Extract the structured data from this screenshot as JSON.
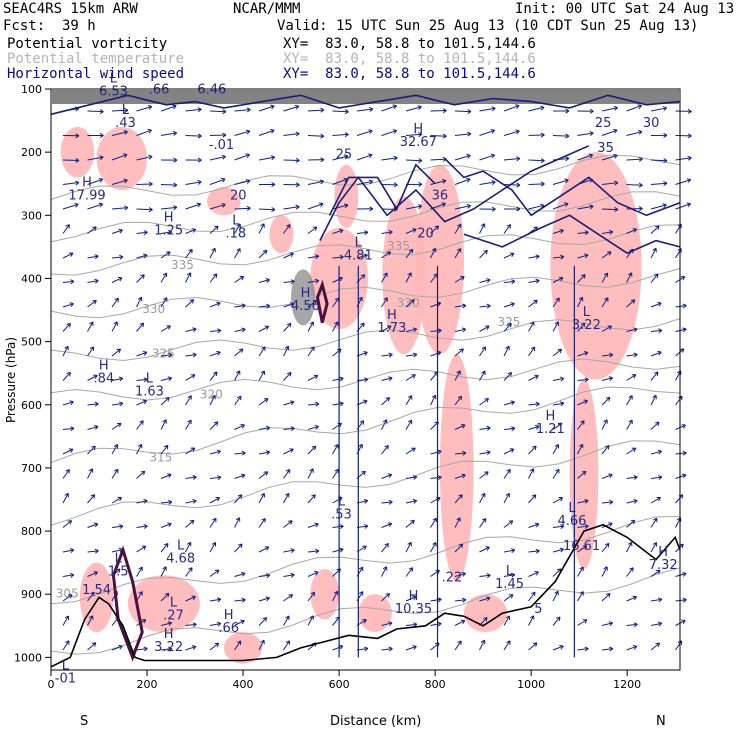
{
  "header": {
    "model": "SEAC4RS 15km ARW",
    "center": "NCAR/MMM",
    "init": "Init: 00 UTC Sat 24 Aug 13",
    "fcst_label": "Fcst:",
    "fcst_value": "39 h",
    "valid": "Valid: 15 UTC Sun 25 Aug 13 (10 CDT Sun 25 Aug 13)"
  },
  "fields": [
    {
      "name": "Potential vorticity",
      "xy": "XY=  83.0, 58.8 to 101.5,144.6",
      "color": "#000000"
    },
    {
      "name": "Potential temperature",
      "xy": "XY=  83.0, 58.8 to 101.5,144.6",
      "color": "#b4b4b4"
    },
    {
      "name": "Horizontal wind speed",
      "xy": "XY=  83.0, 58.8 to 101.5,144.6",
      "color": "#0a0a8c"
    }
  ],
  "colors": {
    "pv_contour": "#4a1040",
    "theta": "#a8a8a8",
    "wind": "#10208a",
    "shade_pink": "#ffb6b6",
    "terrain": "#000000"
  },
  "chart_data": {
    "type": "cross-section",
    "xlabel": "Distance (km)",
    "ylabel": "Pressure (hPa)",
    "xlim": [
      0,
      1310
    ],
    "ylim": [
      1020,
      100
    ],
    "xticks": [
      0,
      200,
      400,
      600,
      800,
      1000,
      1200
    ],
    "yticks": [
      100,
      200,
      300,
      400,
      500,
      600,
      700,
      800,
      900,
      1000
    ],
    "x_end_labels": {
      "left": "S",
      "right": "N"
    },
    "theta_contours": [
      {
        "label": "305",
        "x": 10,
        "p": 905
      },
      {
        "label": "315",
        "x": 205,
        "p": 690
      },
      {
        "label": "320",
        "x": 310,
        "p": 590
      },
      {
        "label": "325",
        "x": 210,
        "p": 525
      },
      {
        "label": "330",
        "x": 190,
        "p": 455
      },
      {
        "label": "335",
        "x": 250,
        "p": 385
      },
      {
        "label": "325",
        "x": 930,
        "p": 475
      },
      {
        "label": "330",
        "x": 720,
        "p": 445
      },
      {
        "label": "335",
        "x": 700,
        "p": 355
      }
    ],
    "extrema_labels": [
      {
        "mark": "L",
        "value": "6.53",
        "x": 130,
        "p": 110
      },
      {
        "mark": "",
        "value": ".66",
        "x": 225,
        "p": 107
      },
      {
        "mark": "",
        "value": "6.46",
        "x": 335,
        "p": 107
      },
      {
        "mark": "L",
        "value": ".43",
        "x": 155,
        "p": 160
      },
      {
        "mark": "",
        "value": "-.01",
        "x": 355,
        "p": 195
      },
      {
        "mark": "H",
        "value": "17.99",
        "x": 75,
        "p": 275
      },
      {
        "mark": "H",
        "value": "1.25",
        "x": 245,
        "p": 330
      },
      {
        "mark": "L",
        "value": ".18",
        "x": 385,
        "p": 335
      },
      {
        "mark": "",
        "value": "20",
        "x": 390,
        "p": 275
      },
      {
        "mark": "",
        "value": "25",
        "x": 610,
        "p": 210
      },
      {
        "mark": "H",
        "value": "32.67",
        "x": 765,
        "p": 190
      },
      {
        "mark": "",
        "value": "36",
        "x": 810,
        "p": 275
      },
      {
        "mark": "",
        "value": "20",
        "x": 780,
        "p": 335
      },
      {
        "mark": "",
        "value": "35",
        "x": 1155,
        "p": 200
      },
      {
        "mark": "",
        "value": "25",
        "x": 1150,
        "p": 160
      },
      {
        "mark": "",
        "value": "30",
        "x": 1250,
        "p": 160
      },
      {
        "mark": "L",
        "value": "4.81",
        "x": 640,
        "p": 370
      },
      {
        "mark": "H",
        "value": "4.56",
        "x": 530,
        "p": 450
      },
      {
        "mark": "H",
        "value": "1.73",
        "x": 710,
        "p": 485
      },
      {
        "mark": "L",
        "value": "3.22",
        "x": 1115,
        "p": 480
      },
      {
        "mark": "H",
        "value": ".84",
        "x": 110,
        "p": 565
      },
      {
        "mark": "L",
        "value": "1.63",
        "x": 205,
        "p": 585
      },
      {
        "mark": "H",
        "value": "1.21",
        "x": 1040,
        "p": 645
      },
      {
        "mark": "L",
        "value": ".53",
        "x": 605,
        "p": 780
      },
      {
        "mark": "L",
        "value": "4.66",
        "x": 1085,
        "p": 790
      },
      {
        "mark": "",
        "value": "16.61",
        "x": 1105,
        "p": 830
      },
      {
        "mark": "L",
        "value": "4.68",
        "x": 270,
        "p": 850
      },
      {
        "mark": "L",
        "value": "1.5",
        "x": 140,
        "p": 870
      },
      {
        "mark": "",
        "value": "1.54",
        "x": 95,
        "p": 900
      },
      {
        "mark": "L",
        "value": ".27",
        "x": 255,
        "p": 940
      },
      {
        "mark": "H",
        "value": "3.22",
        "x": 245,
        "p": 990
      },
      {
        "mark": "H",
        "value": ".66",
        "x": 370,
        "p": 960
      },
      {
        "mark": "H",
        "value": "10.35",
        "x": 755,
        "p": 930
      },
      {
        "mark": "",
        "value": ".22",
        "x": 835,
        "p": 880
      },
      {
        "mark": "L",
        "value": "1.45",
        "x": 955,
        "p": 890
      },
      {
        "mark": "",
        "value": "5",
        "x": 1015,
        "p": 930
      },
      {
        "mark": "H",
        "value": "7.32",
        "x": 1275,
        "p": 860
      },
      {
        "mark": "L",
        "value": "-01",
        "x": 30,
        "p": 1040
      }
    ],
    "terrain": [
      [
        0,
        1015
      ],
      [
        40,
        1000
      ],
      [
        70,
        940
      ],
      [
        100,
        905
      ],
      [
        120,
        915
      ],
      [
        150,
        950
      ],
      [
        175,
        1000
      ],
      [
        195,
        1005
      ],
      [
        240,
        1005
      ],
      [
        300,
        1005
      ],
      [
        400,
        1005
      ],
      [
        470,
        1000
      ],
      [
        520,
        985
      ],
      [
        570,
        975
      ],
      [
        620,
        965
      ],
      [
        680,
        970
      ],
      [
        720,
        955
      ],
      [
        780,
        950
      ],
      [
        820,
        930
      ],
      [
        860,
        935
      ],
      [
        900,
        950
      ],
      [
        940,
        930
      ],
      [
        1000,
        920
      ],
      [
        1050,
        880
      ],
      [
        1080,
        840
      ],
      [
        1110,
        800
      ],
      [
        1150,
        790
      ],
      [
        1200,
        810
      ],
      [
        1260,
        845
      ],
      [
        1300,
        810
      ],
      [
        1310,
        830
      ]
    ],
    "pv_shading": [
      {
        "x": [
          20,
          90
        ],
        "p": [
          160,
          240
        ]
      },
      {
        "x": [
          95,
          200
        ],
        "p": [
          160,
          260
        ]
      },
      {
        "x": [
          325,
          395
        ],
        "p": [
          255,
          300
        ]
      },
      {
        "x": [
          455,
          505
        ],
        "p": [
          300,
          360
        ]
      },
      {
        "x": [
          540,
          660
        ],
        "p": [
          320,
          480
        ]
      },
      {
        "x": [
          590,
          640
        ],
        "p": [
          220,
          320
        ]
      },
      {
        "x": [
          690,
          780
        ],
        "p": [
          270,
          520
        ]
      },
      {
        "x": [
          760,
          860
        ],
        "p": [
          220,
          520
        ]
      },
      {
        "x": [
          810,
          880
        ],
        "p": [
          520,
          880
        ]
      },
      {
        "x": [
          1040,
          1230
        ],
        "p": [
          200,
          560
        ]
      },
      {
        "x": [
          1080,
          1140
        ],
        "p": [
          560,
          860
        ]
      },
      {
        "x": [
          60,
          130
        ],
        "p": [
          850,
          960
        ]
      },
      {
        "x": [
          160,
          310
        ],
        "p": [
          870,
          960
        ]
      },
      {
        "x": [
          360,
          440
        ],
        "p": [
          960,
          1010
        ]
      },
      {
        "x": [
          540,
          600
        ],
        "p": [
          860,
          940
        ]
      },
      {
        "x": [
          640,
          710
        ],
        "p": [
          900,
          960
        ]
      },
      {
        "x": [
          860,
          950
        ],
        "p": [
          900,
          960
        ]
      }
    ]
  }
}
